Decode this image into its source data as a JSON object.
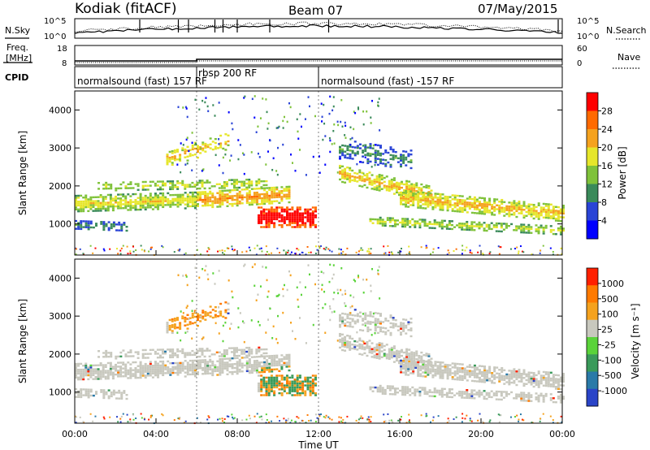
{
  "header": {
    "station": "Kodiak (fitACF)",
    "beam": "Beam 07",
    "date": "07/May/2015"
  },
  "top_panels": {
    "nsky_label": "N.Sky",
    "nsearch_label": "N.Search",
    "noise_ticks_left": [
      "10^5",
      "10^0"
    ],
    "noise_ticks_right": [
      "10^5",
      "10^0"
    ],
    "freq_label_1": "Freq.",
    "freq_label_2": "[MHz]",
    "freq_ticks": [
      "18",
      "8"
    ],
    "nave_label": "Nave",
    "nave_ticks": [
      "60",
      "0"
    ],
    "cpid_label": "CPID",
    "cpid_segments": [
      {
        "name": "normalsound (fast) 157 RF",
        "start_hour": 0
      },
      {
        "name": "rbsp 200 RF",
        "start_hour": 6
      },
      {
        "name": "normalsound (fast) -157 RF",
        "start_hour": 12
      }
    ]
  },
  "colors": {
    "power_scale": [
      "#0000ff",
      "#2a44d6",
      "#3a8a5a",
      "#7fc23a",
      "#e6e62a",
      "#f5a21e",
      "#ff6a00",
      "#ff0000"
    ],
    "velocity_scale": [
      "#2a44c8",
      "#2a7aa8",
      "#3a9a5a",
      "#5ad33a",
      "#c8c8be",
      "#f5a21e",
      "#ff7a00",
      "#ff2000"
    ]
  },
  "chart_data": [
    {
      "type": "heatmap",
      "name": "power",
      "xlabel": "",
      "ylabel": "Slant Range [km]",
      "xlim": [
        0,
        24
      ],
      "ylim": [
        180,
        4500
      ],
      "yticks": [
        1000,
        2000,
        3000,
        4000
      ],
      "colorbar": {
        "label": "Power [dB]",
        "ticks": [
          "28",
          "24",
          "20",
          "16",
          "12",
          "8",
          "4"
        ],
        "range": [
          0,
          30
        ]
      }
    },
    {
      "type": "heatmap",
      "name": "velocity",
      "xlabel": "Time UT",
      "ylabel": "Slant Range [km]",
      "xlim": [
        0,
        24
      ],
      "ylim": [
        180,
        4500
      ],
      "yticks": [
        1000,
        2000,
        3000,
        4000
      ],
      "xticks": [
        "00:00",
        "04:00",
        "08:00",
        "12:00",
        "16:00",
        "20:00",
        "00:00"
      ],
      "colorbar": {
        "label": "Velocity [m s⁻¹]",
        "ticks": [
          "1000",
          "500",
          "100",
          "25",
          "-25",
          "-100",
          "-500",
          "-1000"
        ]
      }
    }
  ]
}
